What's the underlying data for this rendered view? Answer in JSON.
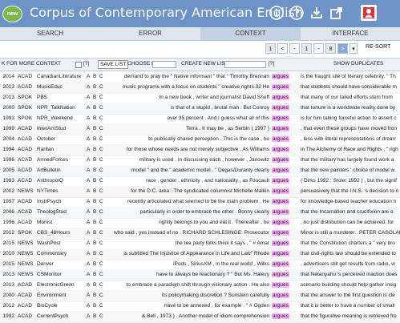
{
  "app": {
    "logo": "new",
    "title": "Corpus of Contemporary American English"
  },
  "header_icons": [
    {
      "name": "info-icon",
      "color": "#ffffff"
    },
    {
      "name": "help-icon",
      "color": "#ffffff"
    },
    {
      "name": "download-icon",
      "color": "#ffffff"
    },
    {
      "name": "share-icon",
      "color": "#ffffff"
    },
    {
      "name": "user-icon",
      "color": "#e23030"
    }
  ],
  "tabs": [
    "SEARCH",
    "ERROR",
    "CONTEXT",
    "INTERFACE"
  ],
  "active_tab": "CONTEXT",
  "pager": {
    "first": "1",
    "second": "1",
    "third": "8",
    "resort": "RE-SORT"
  },
  "toolbar": {
    "context_label": "K FOR MORE CONTEXT",
    "help1": "[?]",
    "save_list": "SAVE LIST",
    "choose_list": "CHOOSE LIST",
    "create_new_list": "CREATE NEW LIST",
    "help2": "[?]",
    "show_duplicates": "SHOW DUPLICATES"
  },
  "keyword": "argues",
  "colors": {
    "keyword_bg": "#ffb3ff",
    "header_bg": "#6d93c6"
  },
  "rows": [
    {
      "year": "2014",
      "genre": "ACAD",
      "source": "CanadianLiterature",
      "left": "demand to pray the \" Native informant \" that \" Timothy Brennan",
      "right": "is the fraught site of literary celebrity. \" Th"
    },
    {
      "year": "2013",
      "genre": "ACAD",
      "source": "MusicEduc",
      "left": "music programs with a focus on students \" creative rights.32 He",
      "right": "that students should have considerable m"
    },
    {
      "year": "2013",
      "genre": "SPOK",
      "source": "PBS",
      "left": ". In a new book , writer and journalist David Sheff",
      "right": "that many of our failed efforts stem from"
    },
    {
      "year": "2000",
      "genre": "SPOK",
      "source": "NPR_TalkNation",
      "left": "is that of a stupid , brutal man . But Conroy",
      "right": "that torture is a worldwide reality done by"
    },
    {
      "year": "1993",
      "genre": "SPOK",
      "source": "NPR_Weekend",
      "left": "over 35 percent . And I guess what all of this",
      "right": "is for him taking forceful action to assert c"
    },
    {
      "year": "1999",
      "genre": "ACAD",
      "source": "InterAmStud",
      "left": "Terra . It may be , as Serbin ( 1997 )",
      "right": ", that even these groups have moved fron"
    },
    {
      "year": "2004",
      "genre": "ACAD",
      "source": "October",
      "left": "to publically shared perception . This is the case , he",
      "right": ", less with literal representations of drearr"
    },
    {
      "year": "1994",
      "genre": "ACAD",
      "source": "Raritan",
      "left": "for those whose needs are not merely subjective . As Williams",
      "right": "in The Alchemy of Race and Rights , \" righ"
    },
    {
      "year": "1996",
      "genre": "ACAD",
      "source": "ArmedForces",
      "left": "military is used . In discussing each , however , Janowitz",
      "right": "that the military has largely found work a"
    },
    {
      "year": "2005",
      "genre": "ACAD",
      "source": "ArtBulletin",
      "left": "model \" and the \" academic model . \" Degas/Duranty clearly",
      "right": "that the new painters ' choice of model w"
    },
    {
      "year": "1993",
      "genre": "ACAD",
      "source": "AnthropolQ",
      "left": "race , gender , ethnicity , and nationality , as Foucault",
      "right": "( Dirks 1992 ; Stoler 1992 ) , but the signif"
    },
    {
      "year": "2002",
      "genre": "NEWS",
      "source": "NYTimes",
      "left": "for the D.C. area . The syndicated columnist Michelle Malkin",
      "right": "persuasively that the I.N.S. 's decision to n"
    },
    {
      "year": "1997",
      "genre": "ACAD",
      "source": "InstrPsych",
      "left": "recently articulated what seemed to be the main problem . He",
      "right": "for knowledge-based teacher education n"
    },
    {
      "year": "2006",
      "genre": "ACAD",
      "source": "TheologStud",
      "left": "particularly in order to embrace the other . Bonny clearly",
      "right": "that the Incarnation and crucifixion are e"
    },
    {
      "year": "1996",
      "genre": "ACAD",
      "source": "Monist",
      "left": "rightly belongs to you and eat it . Thereafter , he",
      "right": ", no just distribution can be achieved, for"
    },
    {
      "year": "2012",
      "genre": "SPOK",
      "source": "CBS_48Hours",
      "left": "who said , yes instead of no . RICHARD SCHLESINGE: Prosecutor",
      "right": "Minor is still a murderer . PETER CASOLAR"
    },
    {
      "year": "2015",
      "genre": "NEWS",
      "source": "WashPost",
      "left": "the tea party folks think it says . \" # Amar",
      "right": "that the Constitution charters a \" very bro"
    },
    {
      "year": "2010",
      "genre": "NEWS",
      "source": "Commentary",
      "left": "is subtitled The Injustice of Appearance in Life and Law\" Rhode",
      "right": "that civil-rights law should be extended to"
    },
    {
      "year": "2015",
      "genre": "NEWS",
      "source": "Denver",
      "left": "iPods , SiriusXM , in the real world , Wilks",
      "right": ", advertisers still get results from radio, w"
    },
    {
      "year": "2013",
      "genre": "NEWS",
      "source": "CSMonitor",
      "left": "have to always be reactionary ? \" But Ms. Halevy",
      "right": "that Netanyahu 's perceived inaction does"
    },
    {
      "year": "2013",
      "genre": "ACAD",
      "source": "ElectronicGreen",
      "left": "to embrace a paradigm shift through visionary action . He also",
      "right": "scenario building should help gather insig"
    },
    {
      "year": "2000",
      "genre": "ACAD",
      "source": "Environment",
      "left": "its policymaking discretion ? Sunstein carefully",
      "right": "that the answer to the first question is cle"
    },
    {
      "year": "2012",
      "genre": "ACAD",
      "source": "BioCycle",
      "left": "have to be annexed , for example . \" # Ogden",
      "right": "that it is better to have a number of small"
    },
    {
      "year": "1992",
      "genre": "ACAD",
      "source": "CurrentPsych",
      "left": "& Bell , 1973 ) . Another model of idiom comprehension",
      "right": "that the figurative meaning is retrieved fro"
    }
  ]
}
